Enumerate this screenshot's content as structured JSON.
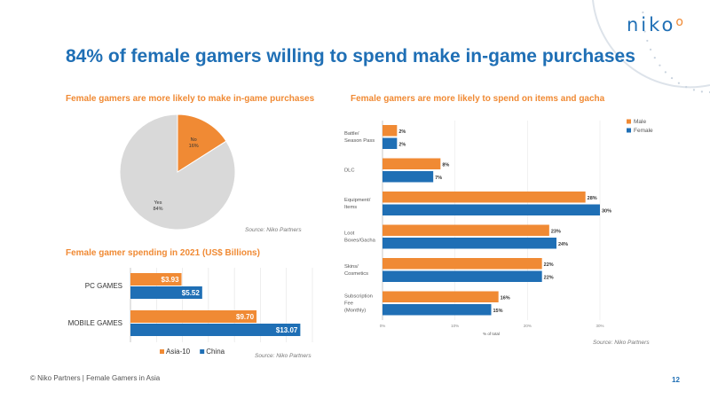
{
  "brand": {
    "logo_text": "niko",
    "accent": "#1f6fb5",
    "secondary": "#f08a34"
  },
  "title": "84% of female gamers willing to spend make in-game purchases",
  "footer": {
    "copyright": "© Niko Partners | Female Gamers in Asia",
    "page_number": "12"
  },
  "chart_data": [
    {
      "type": "pie",
      "title": "Female gamers are more likely to make in-game purchases",
      "source": "Source: Niko Partners",
      "slices": [
        {
          "label": "No",
          "value": 16,
          "value_label": "16%",
          "color": "#f08a34"
        },
        {
          "label": "Yes",
          "value": 84,
          "value_label": "84%",
          "color": "#d9d9d9"
        }
      ]
    },
    {
      "type": "bar",
      "orientation": "horizontal",
      "title": "Female gamer spending in 2021 (US$ Billions)",
      "source": "Source: Niko Partners",
      "categories": [
        "PC GAMES",
        "MOBILE GAMES"
      ],
      "series": [
        {
          "name": "Asia-10",
          "color": "#f08a34",
          "values": [
            3.93,
            9.7
          ],
          "labels": [
            "$3.93",
            "$9.70"
          ]
        },
        {
          "name": "China",
          "color": "#1f6fb5",
          "values": [
            5.52,
            13.07
          ],
          "labels": [
            "$5.52",
            "$13.07"
          ]
        }
      ],
      "xlim": [
        0,
        14
      ],
      "legend": "bottom",
      "grid": true
    },
    {
      "type": "bar",
      "orientation": "horizontal",
      "title": "Female gamers are more likely to spend on items and gacha",
      "source": "Source: Niko Partners",
      "categories": [
        [
          "Battle/",
          "Season Pass"
        ],
        [
          "DLC"
        ],
        [
          "Equipment/",
          "Items"
        ],
        [
          "Loot",
          "Boxes/Gacha"
        ],
        [
          "Skins/",
          "Cosmetics"
        ],
        [
          "Subscription",
          "Fee",
          "(Monthly)"
        ]
      ],
      "series": [
        {
          "name": "Male",
          "color": "#f08a34",
          "values": [
            2,
            8,
            28,
            23,
            22,
            16
          ],
          "labels": [
            "2%",
            "8%",
            "28%",
            "23%",
            "22%",
            "16%"
          ]
        },
        {
          "name": "Female",
          "color": "#1f6fb5",
          "values": [
            2,
            7,
            30,
            24,
            22,
            15
          ],
          "labels": [
            "2%",
            "7%",
            "30%",
            "24%",
            "22%",
            "15%"
          ]
        }
      ],
      "xlim": [
        0,
        30
      ],
      "x_ticks": [
        "0%",
        "10%",
        "20%",
        "30%"
      ],
      "xlabel": "% of total",
      "legend": "top-right",
      "grid": true
    }
  ]
}
